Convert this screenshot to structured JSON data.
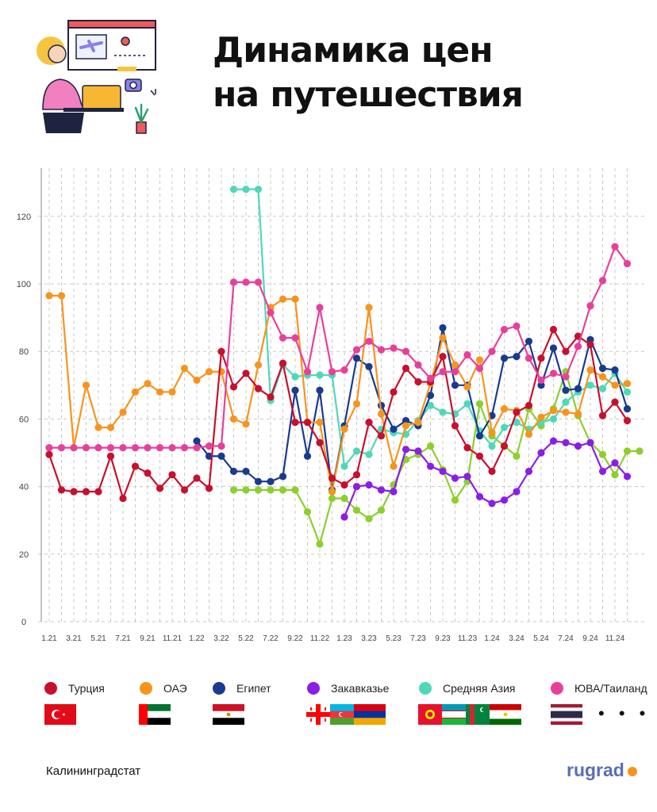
{
  "title": [
    "Динамика цен",
    "на путешествия"
  ],
  "source": "Калининградстат",
  "brand": "rugrad",
  "colors": {
    "turkey": "#c8102e",
    "uae": "#f7941d",
    "egypt": "#1a3a8f",
    "caucasus": "#8b1ee6",
    "central_asia": "#4fd8b8",
    "sea_thailand": "#e8409a",
    "grid": "#c8c8c8",
    "axis_text": "#444444"
  },
  "legend_ellipsis": "• • •",
  "chart_data": {
    "type": "line",
    "title": "Динамика цен на путешествия",
    "ylim": [
      0,
      135
    ],
    "yticks": [
      0,
      20,
      40,
      60,
      80,
      100,
      120
    ],
    "grid": "dashed",
    "x_tick_labels": [
      "1.21",
      "3.21",
      "5.21",
      "7.21",
      "9.21",
      "11.21",
      "1.22",
      "3.22",
      "5.22",
      "7.22",
      "9.22",
      "11.22",
      "1.23",
      "3.23",
      "5.23",
      "7.23",
      "9.23",
      "11.23",
      "1.24",
      "3.24",
      "5.24",
      "7.24",
      "9.24",
      "11.24"
    ],
    "legend_position": "bottom",
    "series": [
      {
        "name": "Турция",
        "color_key": "turkey",
        "flags": [
          "turkey"
        ],
        "values": [
          49.5,
          39,
          38.5,
          38.5,
          38.5,
          49,
          36.5,
          46,
          44,
          39.5,
          43.5,
          39,
          42.5,
          39.5,
          80,
          69.5,
          73.5,
          69,
          66.5,
          76.5,
          59,
          59,
          53,
          42.5,
          40.5,
          43.5,
          59,
          55,
          68,
          75,
          71,
          71,
          78.5,
          58,
          51.5,
          49,
          44.5,
          52,
          62,
          64,
          78,
          86.5,
          80,
          84.5,
          82,
          61,
          65,
          59.5
        ]
      },
      {
        "name": "ОАЭ",
        "color_key": "uae",
        "flags": [
          "uae"
        ],
        "values": [
          96.5,
          96.5,
          51.5,
          70,
          57.5,
          57.5,
          62,
          68,
          70.5,
          68,
          68,
          75,
          71.5,
          74,
          74,
          60,
          58.5,
          76,
          93,
          95.5,
          95.5,
          59,
          59,
          38.5,
          57,
          64.5,
          93,
          61.5,
          46,
          58,
          59,
          70.5,
          84,
          76,
          69.5,
          77.5,
          56,
          63,
          62.5,
          55.5,
          60.5,
          62.5,
          62,
          61.5,
          74.5,
          72.5,
          70,
          70.5
        ]
      },
      {
        "name": "Египет",
        "color_key": "egypt",
        "flags": [
          "egypt"
        ],
        "start": 12,
        "values": [
          53.5,
          49,
          49,
          44.5,
          44.5,
          41.5,
          41.5,
          43,
          68.5,
          49,
          68.5,
          39,
          58,
          78,
          75.5,
          64,
          57,
          59.5,
          58,
          67,
          87,
          70,
          70,
          55,
          61,
          78,
          78.5,
          83,
          70,
          81,
          68.5,
          69,
          83.5,
          75,
          74.5,
          63
        ]
      },
      {
        "name": "Закавказье",
        "color_key": "caucasus",
        "flags": [
          "georgia",
          "azerbaijan",
          "armenia"
        ],
        "start": 24,
        "values": [
          31,
          40,
          40.5,
          39,
          38.5,
          51,
          50.5,
          46,
          44.5,
          42.5,
          43,
          37,
          35,
          36,
          38.5,
          44.5,
          50,
          53.5,
          53,
          52,
          53,
          44.5,
          47,
          43
        ]
      },
      {
        "name": "Средняя Азия",
        "color_key": "central_asia",
        "flags": [
          "kyrgyzstan",
          "uzbekistan",
          "turkmenistan",
          "tajikistan"
        ],
        "start": 15,
        "values": [
          128,
          128,
          128,
          65.5,
          76,
          72.5,
          73,
          73,
          73,
          46,
          50.5,
          49.5,
          57,
          56,
          55.5,
          59.5,
          64,
          62,
          61.5,
          64.5,
          56.5,
          52,
          57.5,
          59,
          57,
          59,
          60,
          65,
          68,
          70,
          69,
          73.5,
          68
        ]
      },
      {
        "name": "ЮВА/Таиланд",
        "color_key": "sea_thailand",
        "flags": [
          "thailand"
        ],
        "values": [
          51.5,
          51.5,
          51.5,
          51.5,
          51.5,
          51.5,
          51.5,
          51.5,
          51.5,
          51.5,
          51.5,
          51.5,
          51.5,
          52,
          52,
          100.5,
          100.5,
          100.5,
          91.5,
          84,
          84,
          74,
          93,
          74,
          74.5,
          80.5,
          83,
          80.5,
          81,
          80,
          76,
          72,
          74,
          74,
          79,
          75,
          80,
          86.5,
          87.5,
          78,
          71.5,
          73.5,
          72.5,
          81.5,
          93.5,
          101,
          111,
          106
        ]
      },
      {
        "name": "",
        "color_key": "",
        "flags": [],
        "legend": false,
        "color": "#8ccf2e",
        "start": 15,
        "values": [
          39,
          39,
          39,
          39,
          39,
          39,
          32.5,
          23,
          36.5,
          36.5,
          33,
          30.5,
          33,
          40.5,
          48,
          49.5,
          52,
          45,
          36,
          41.5,
          64.5,
          55,
          52,
          49,
          63,
          58,
          63,
          74,
          61,
          53,
          49.5,
          43.5,
          50.5,
          50.5
        ]
      }
    ]
  }
}
